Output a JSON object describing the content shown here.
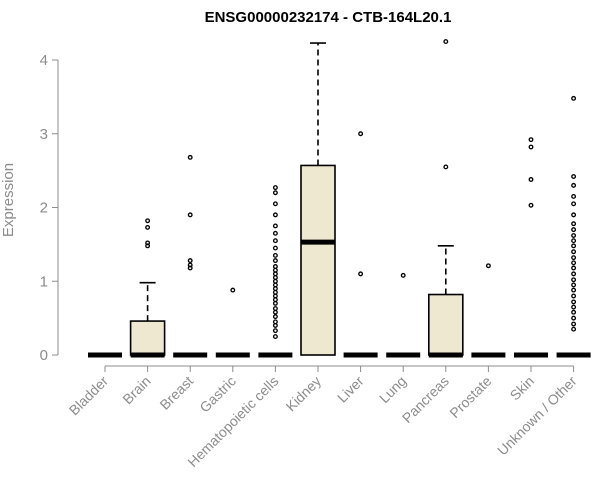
{
  "chart_data": {
    "type": "box",
    "title": "ENSG00000232174 - CTB-164L20.1",
    "ylabel": "Expression",
    "xlabel": "",
    "ylim": [
      0,
      4.25
    ],
    "yticks": [
      0,
      1,
      2,
      3,
      4
    ],
    "box_fill": "#efe8d0",
    "grid": false,
    "categories": [
      "Bladder",
      "Brain",
      "Breast",
      "Gastric",
      "Hematopoietic cells",
      "Kidney",
      "Liver",
      "Lung",
      "Pancreas",
      "Prostate",
      "Skin",
      "Unknown / Other"
    ],
    "boxes": [
      {
        "q1": 0,
        "median": 0,
        "q3": 0,
        "whisker_low": 0,
        "whisker_high": 0,
        "outliers": []
      },
      {
        "q1": 0,
        "median": 0,
        "q3": 0.46,
        "whisker_low": 0,
        "whisker_high": 0.98,
        "outliers": [
          1.48,
          1.52,
          1.73,
          1.82
        ]
      },
      {
        "q1": 0,
        "median": 0,
        "q3": 0,
        "whisker_low": 0,
        "whisker_high": 0,
        "outliers": [
          1.18,
          1.22,
          1.28,
          1.9,
          2.68
        ]
      },
      {
        "q1": 0,
        "median": 0,
        "q3": 0,
        "whisker_low": 0,
        "whisker_high": 0,
        "outliers": [
          0.88
        ]
      },
      {
        "q1": 0,
        "median": 0,
        "q3": 0,
        "whisker_low": 0,
        "whisker_high": 0,
        "outliers": [
          0.25,
          0.33,
          0.4,
          0.45,
          0.52,
          0.58,
          0.63,
          0.7,
          0.75,
          0.8,
          0.85,
          0.9,
          0.95,
          1.0,
          1.05,
          1.1,
          1.15,
          1.2,
          1.28,
          1.35,
          1.45,
          1.55,
          1.65,
          1.75,
          1.9,
          2.05,
          2.2,
          2.27
        ]
      },
      {
        "q1": 0,
        "median": 1.53,
        "q3": 2.57,
        "whisker_low": 0,
        "whisker_high": 4.23,
        "outliers": []
      },
      {
        "q1": 0,
        "median": 0,
        "q3": 0,
        "whisker_low": 0,
        "whisker_high": 0,
        "outliers": [
          1.1,
          3.0
        ]
      },
      {
        "q1": 0,
        "median": 0,
        "q3": 0,
        "whisker_low": 0,
        "whisker_high": 0,
        "outliers": [
          1.08
        ]
      },
      {
        "q1": 0,
        "median": 0,
        "q3": 0.82,
        "whisker_low": 0,
        "whisker_high": 1.48,
        "outliers": [
          2.55,
          4.25
        ]
      },
      {
        "q1": 0,
        "median": 0,
        "q3": 0,
        "whisker_low": 0,
        "whisker_high": 0,
        "outliers": [
          1.21
        ]
      },
      {
        "q1": 0,
        "median": 0,
        "q3": 0,
        "whisker_low": 0,
        "whisker_high": 0,
        "outliers": [
          2.03,
          2.38,
          2.82,
          2.92
        ]
      },
      {
        "q1": 0,
        "median": 0,
        "q3": 0,
        "whisker_low": 0,
        "whisker_high": 0,
        "outliers": [
          0.35,
          0.42,
          0.5,
          0.58,
          0.65,
          0.72,
          0.8,
          0.88,
          0.95,
          1.02,
          1.1,
          1.18,
          1.25,
          1.32,
          1.4,
          1.48,
          1.55,
          1.62,
          1.7,
          1.78,
          1.9,
          2.05,
          2.15,
          2.3,
          2.42,
          3.48
        ]
      }
    ]
  }
}
